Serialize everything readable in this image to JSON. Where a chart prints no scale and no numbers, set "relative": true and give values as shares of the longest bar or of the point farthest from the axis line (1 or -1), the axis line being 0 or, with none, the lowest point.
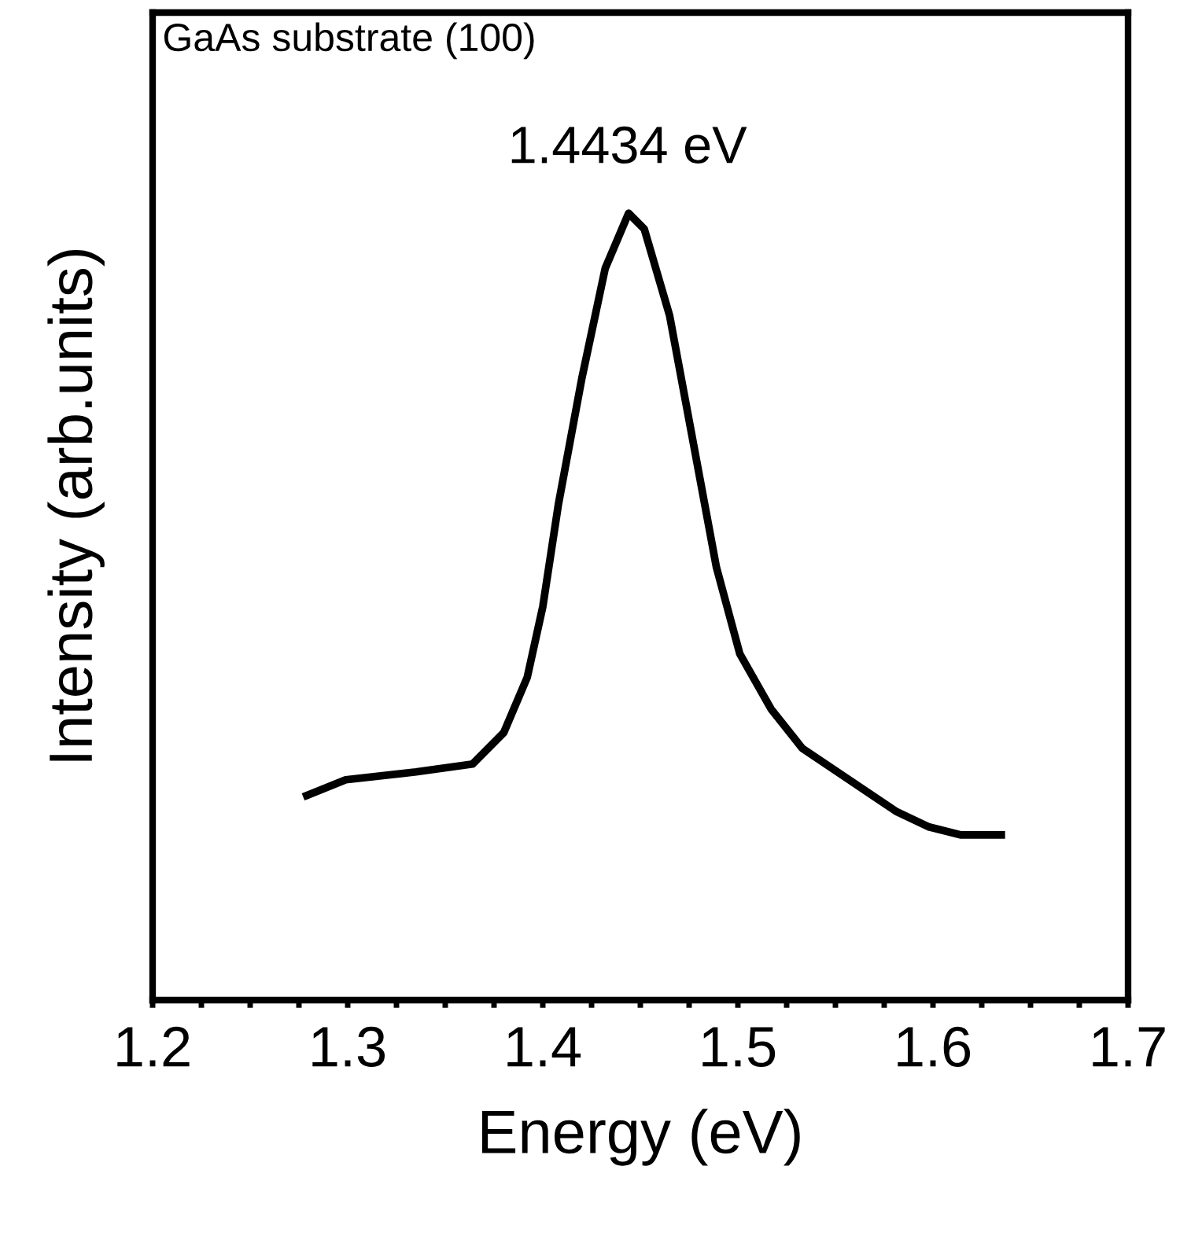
{
  "chart_data": {
    "type": "line",
    "relative": true,
    "xlabel": "Energy (eV)",
    "ylabel": "Intensity (arb.units)",
    "annotations": [
      "GaAs substrate (100)",
      {
        "text": "1.4434 eV",
        "x": 1.4434,
        "y": 1
      }
    ],
    "x": [
      1.279,
      1.299,
      1.335,
      1.364,
      1.38,
      1.392,
      1.4,
      1.408,
      1.42,
      1.432,
      1.444,
      1.452,
      1.465,
      1.477,
      1.489,
      1.501,
      1.517,
      1.533,
      1.557,
      1.581,
      1.598,
      1.614,
      1.635
    ],
    "series": [
      {
        "color": "#000000",
        "values": [
          0.26,
          0.28,
          0.29,
          0.3,
          0.34,
          0.41,
          0.5,
          0.63,
          0.79,
          0.93,
          1.0,
          0.98,
          0.87,
          0.71,
          0.55,
          0.44,
          0.37,
          0.32,
          0.28,
          0.24,
          0.22,
          0.21,
          0.21
        ]
      }
    ],
    "xlim": [
      1.2,
      1.7
    ],
    "xticks": [
      1.2,
      {
        "value": 1.225,
        "label": null
      },
      {
        "value": 1.25,
        "label": null
      },
      {
        "value": 1.275,
        "label": null
      },
      1.3,
      {
        "value": 1.325,
        "label": null
      },
      {
        "value": 1.35,
        "label": null
      },
      {
        "value": 1.375,
        "label": null
      },
      1.4,
      {
        "value": 1.425,
        "label": null
      },
      {
        "value": 1.45,
        "label": null
      },
      {
        "value": 1.475,
        "label": null
      },
      1.5,
      {
        "value": 1.525,
        "label": null
      },
      {
        "value": 1.55,
        "label": null
      },
      {
        "value": 1.575,
        "label": null
      },
      1.6,
      {
        "value": 1.625,
        "label": null
      },
      {
        "value": 1.65,
        "label": null
      },
      {
        "value": 1.675,
        "label": null
      },
      1.7
    ],
    "grid": false,
    "legend": false,
    "line_style": "solid",
    "marker": "none"
  }
}
